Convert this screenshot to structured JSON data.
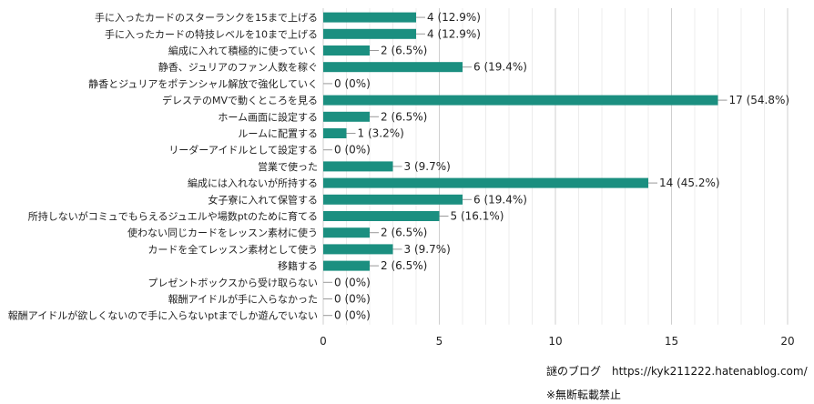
{
  "chart_data": {
    "type": "bar",
    "orientation": "horizontal",
    "categories": [
      "手に入ったカードのスターランクを15まで上げる",
      "手に入ったカードの特技レベルを10まで上げる",
      "編成に入れて積極的に使っていく",
      "静香、ジュリアのファン人数を稼ぐ",
      "静香とジュリアをポテンシャル解放で強化していく",
      "デレステのMVで動くところを見る",
      "ホーム画面に設定する",
      "ルームに配置する",
      "リーダーアイドルとして設定する",
      "営業で使った",
      "編成には入れないが所持する",
      "女子寮に入れて保管する",
      "所持しないがコミュでもらえるジュエルや場数ptのために育てる",
      "使わない同じカードをレッスン素材に使う",
      "カードを全てレッスン素材として使う",
      "移籍する",
      "プレゼントボックスから受け取らない",
      "報酬アイドルが手に入らなかった",
      "報酬アイドルが欲しくないので手に入らないptまでしか遊んでいない"
    ],
    "values": [
      4,
      4,
      2,
      6,
      0,
      17,
      2,
      1,
      0,
      3,
      14,
      6,
      5,
      2,
      3,
      2,
      0,
      0,
      0
    ],
    "value_labels": [
      "4 (12.9%)",
      "4 (12.9%)",
      "2 (6.5%)",
      "6 (19.4%)",
      "0 (0%)",
      "17 (54.8%)",
      "2 (6.5%)",
      "1 (3.2%)",
      "0 (0%)",
      "3 (9.7%)",
      "14 (45.2%)",
      "6 (19.4%)",
      "5 (16.1%)",
      "2 (6.5%)",
      "3 (9.7%)",
      "2 (6.5%)",
      "0 (0%)",
      "0 (0%)",
      "0 (0%)"
    ],
    "xlim": [
      0,
      20
    ],
    "xticks": [
      0,
      5,
      10,
      15,
      20
    ],
    "grid": true,
    "bar_color": "#1b8f80"
  },
  "footer": {
    "credit": "謎のブログ　https://kyk211222.hatenablog.com/",
    "notice": "※無断転載禁止"
  }
}
